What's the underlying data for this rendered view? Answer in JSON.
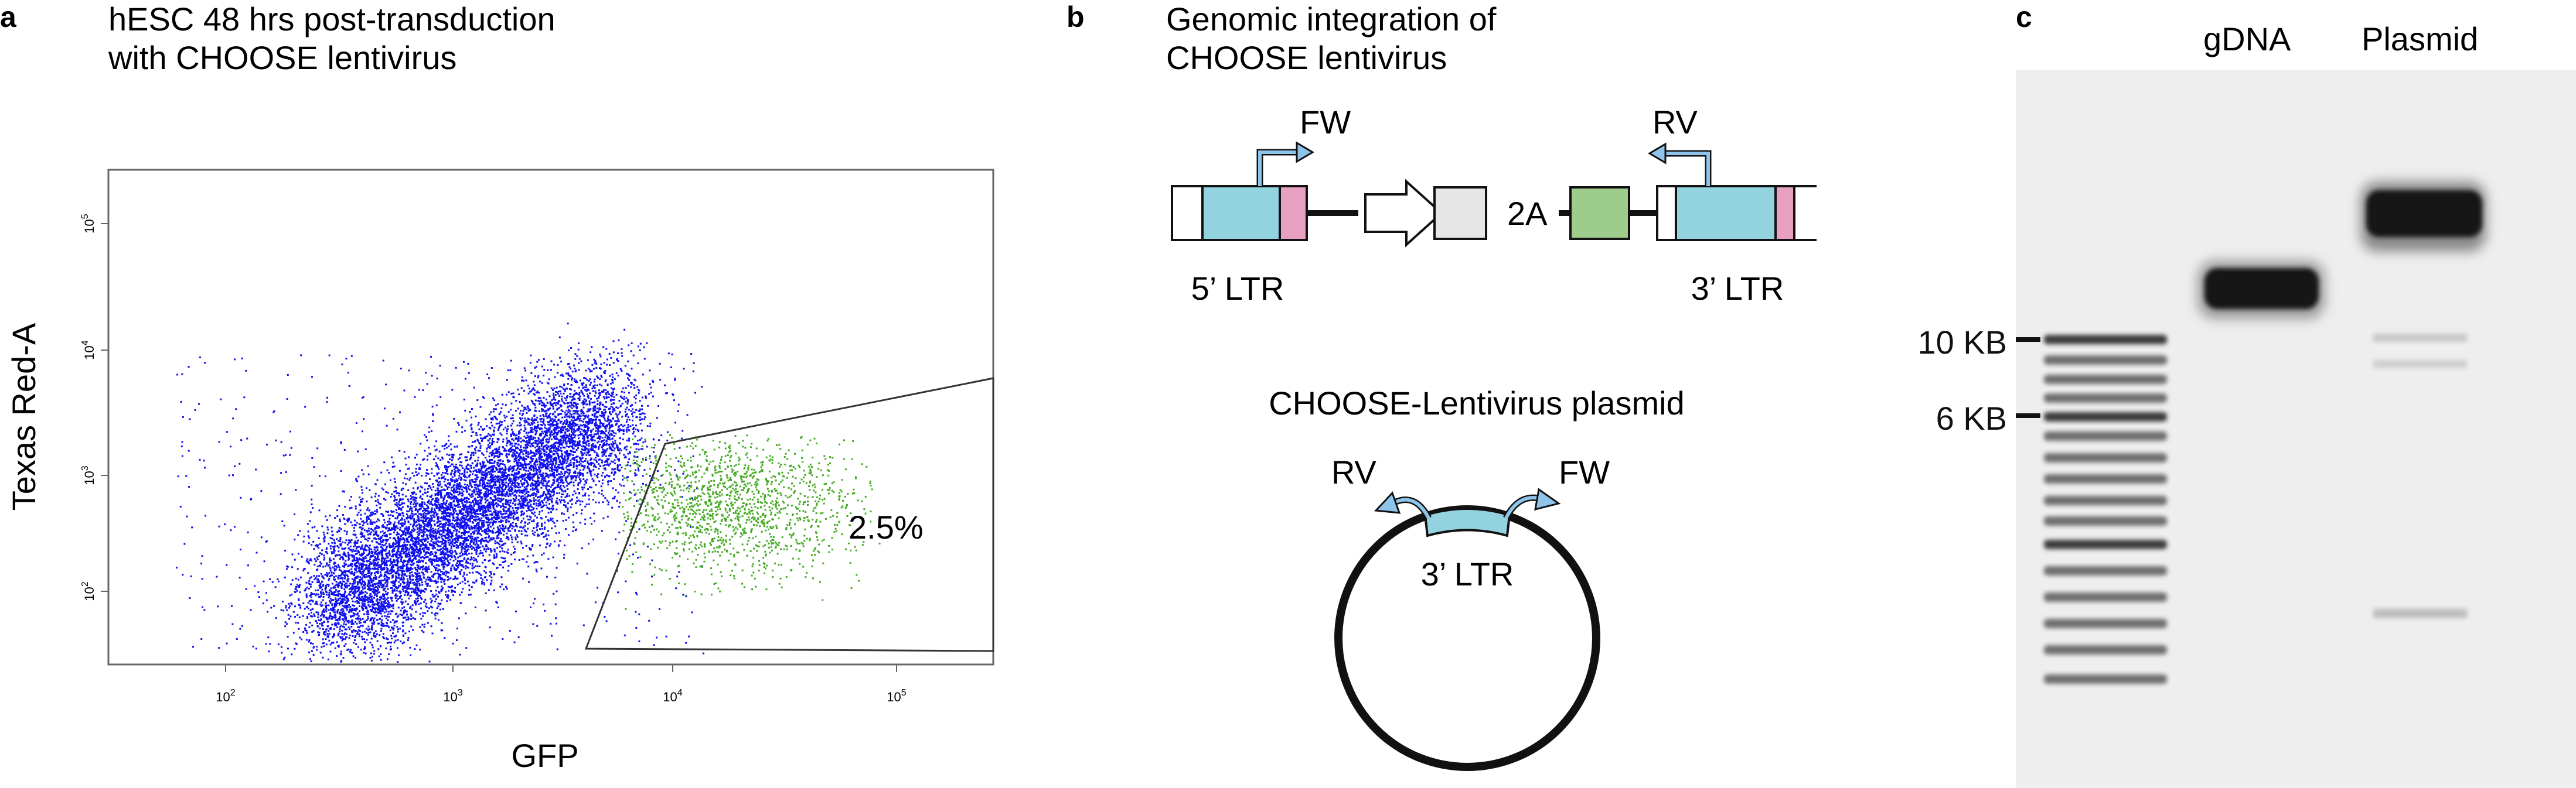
{
  "panel_a": {
    "letter": "a",
    "title_line1": "hESC 48 hrs post-transduction",
    "title_line2": "with CHOOSE lentivirus",
    "xlabel": "GFP",
    "ylabel": "Texas Red-A",
    "x_ticks": [
      {
        "base": "10",
        "exp": "2",
        "value": 100
      },
      {
        "base": "10",
        "exp": "3",
        "value": 1000
      },
      {
        "base": "10",
        "exp": "4",
        "value": 10000
      },
      {
        "base": "10",
        "exp": "5",
        "value": 100000
      }
    ],
    "y_ticks": [
      {
        "base": "10",
        "exp": "2",
        "value": 100
      },
      {
        "base": "10",
        "exp": "3",
        "value": 1000
      },
      {
        "base": "10",
        "exp": "4",
        "value": 10000
      },
      {
        "base": "10",
        "exp": "5",
        "value": 100000
      }
    ],
    "gate_percent": "2.5%",
    "colors": {
      "negative": "#1010ee",
      "positive": "#44aa22"
    }
  },
  "panel_b": {
    "letter": "b",
    "title_line1": "Genomic integration of",
    "title_line2": "CHOOSE lentivirus",
    "fw_label": "FW",
    "rv_label": "RV",
    "element_2a": "2A",
    "ltr5_label": "5’ LTR",
    "ltr3_label": "3’ LTR",
    "plasmid_title": "CHOOSE-Lentivirus plasmid",
    "plasmid_rv": "RV",
    "plasmid_fw": "FW",
    "plasmid_ltr": "3’ LTR",
    "colors": {
      "ltr": "#93d3df",
      "pink": "#e8a0c2",
      "grey": "#e6e6e6",
      "green": "#9dcc8c",
      "arrow": "#8ec4ea"
    }
  },
  "panel_c": {
    "letter": "c",
    "lane_gdna": "gDNA",
    "lane_plasmid": "Plasmid",
    "marker_10kb": "10 KB",
    "marker_6kb": "6 KB"
  }
}
